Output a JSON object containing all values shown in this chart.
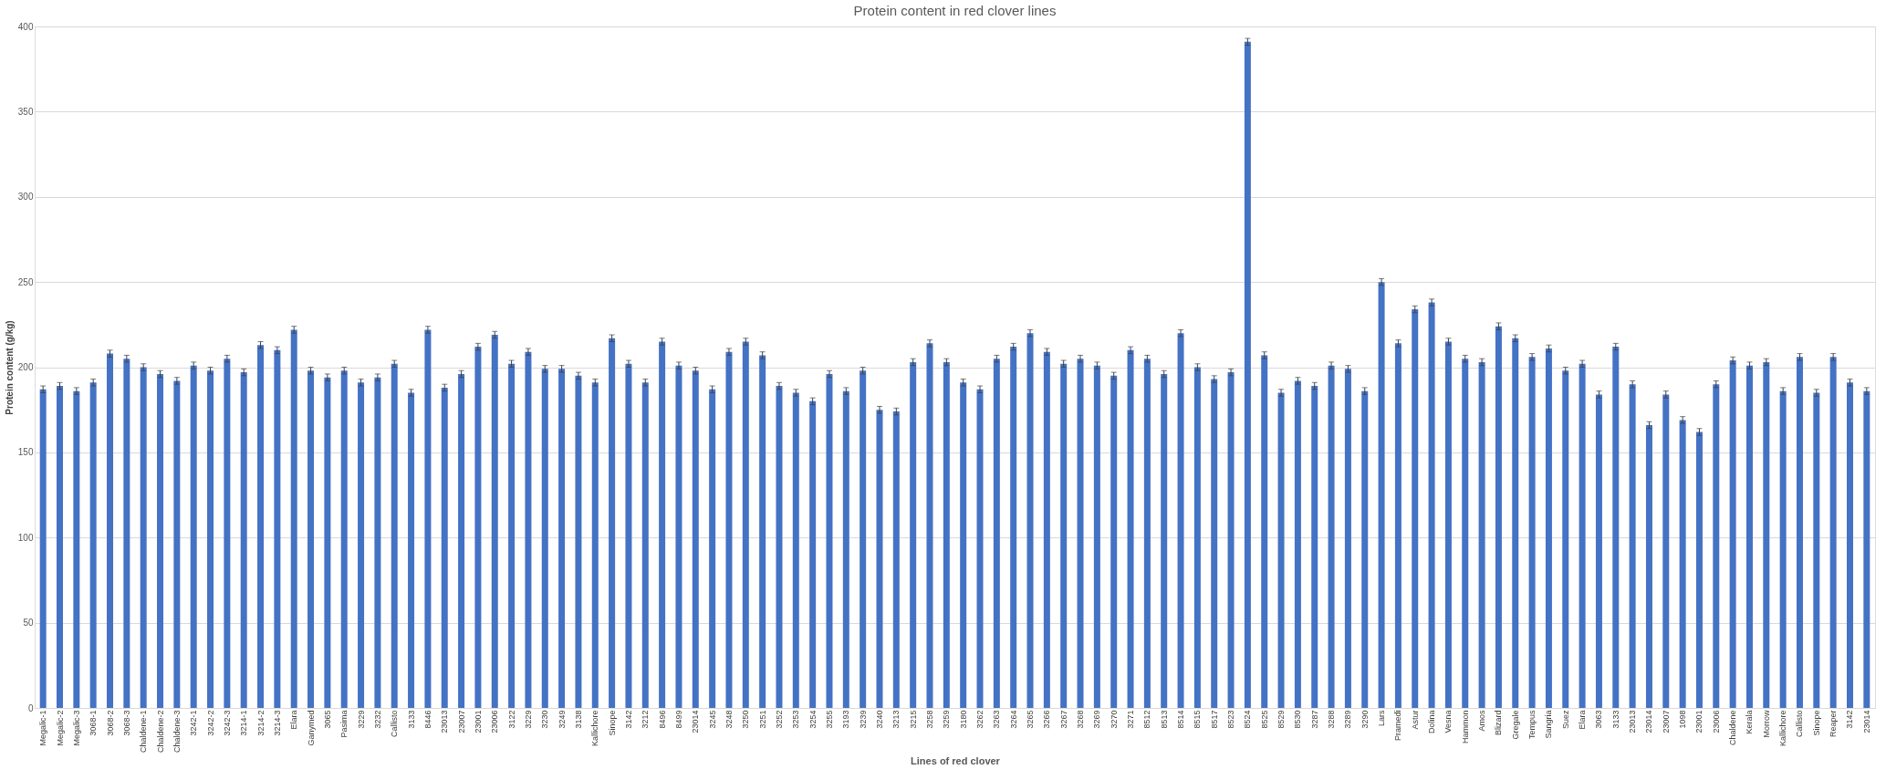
{
  "chart_data": {
    "type": "bar",
    "title": "Protein content in red clover lines",
    "xlabel": "Lines of red clover",
    "ylabel": "Protein content (g/kg)",
    "categories": [
      "Megalic-1",
      "Megalic-2",
      "Megalic-3",
      "3068-1",
      "3068-2",
      "3068-3",
      "Chaldene-1",
      "Chaldene-2",
      "Chaldene-3",
      "3242-1",
      "3242-2",
      "3242-3",
      "3214-1",
      "3214-2",
      "3214-3",
      "Elara",
      "Ganymed",
      "3065",
      "Pasima",
      "3229",
      "3232",
      "Callisto",
      "3133",
      "8446",
      "23013",
      "23007",
      "23001",
      "23006",
      "3122",
      "3229",
      "3230",
      "3249",
      "3138",
      "Kallichore",
      "Sinope",
      "3142",
      "3212",
      "8496",
      "8499",
      "23014",
      "3245",
      "3248",
      "3250",
      "3251",
      "3252",
      "3253",
      "3254",
      "3255",
      "3193",
      "3239",
      "3240",
      "3213",
      "3215",
      "3258",
      "3259",
      "3180",
      "3262",
      "3263",
      "3264",
      "3265",
      "3266",
      "3267",
      "3268",
      "3269",
      "3270",
      "3271",
      "8512",
      "8513",
      "8514",
      "8515",
      "8517",
      "8523",
      "8524",
      "8525",
      "8529",
      "8530",
      "3287",
      "3288",
      "3289",
      "3290",
      "Lars",
      "Pramedi",
      "Astur",
      "Dolina",
      "Vesna",
      "Hammon",
      "Amos",
      "Blizard",
      "Gregale",
      "Tempus",
      "Sangria",
      "Suez",
      "Elara",
      "3063",
      "3133",
      "23013",
      "23014",
      "23007",
      "1098",
      "23001",
      "23006",
      "Chaldene",
      "Kerala",
      "Morrow",
      "Kallichore",
      "Callisto",
      "Sinope",
      "Reaper",
      "3142",
      "23014"
    ],
    "series": [
      {
        "color": "#4472c4",
        "values": [
          187,
          189,
          186,
          191,
          208,
          205,
          200,
          196,
          192,
          201,
          198,
          205,
          197,
          213,
          210,
          222,
          198,
          194,
          198,
          191,
          194,
          202,
          185,
          222,
          188,
          196,
          212,
          219,
          202,
          209,
          199,
          199,
          195,
          191,
          217,
          202,
          191,
          215,
          201,
          198,
          187,
          209,
          215,
          207,
          189,
          185,
          180,
          196,
          186,
          198,
          175,
          174,
          203,
          214,
          203,
          191,
          187,
          205,
          212,
          220,
          209,
          202,
          205,
          201,
          195,
          210,
          205,
          196,
          220,
          200,
          193,
          197,
          391,
          207,
          185,
          192,
          189,
          201,
          199,
          186,
          250,
          214,
          234,
          238,
          215,
          205,
          203,
          224,
          217,
          206,
          211,
          198,
          202,
          184,
          212,
          190,
          166,
          184,
          169,
          162,
          190,
          204,
          201,
          203,
          186,
          206,
          185,
          206,
          191,
          186
        ],
        "errors": [
          2,
          2,
          2,
          2,
          2,
          2,
          2,
          2,
          2,
          2,
          2,
          2,
          2,
          2,
          2,
          2,
          2,
          2,
          2,
          2,
          2,
          2,
          2,
          2,
          2,
          2,
          2,
          2,
          2,
          2,
          2,
          2,
          2,
          2,
          2,
          2,
          2,
          2,
          2,
          2,
          2,
          2,
          2,
          2,
          2,
          2,
          2,
          2,
          2,
          2,
          2,
          2,
          2,
          2,
          2,
          2,
          2,
          2,
          2,
          2,
          2,
          2,
          2,
          2,
          2,
          2,
          2,
          2,
          2,
          2,
          2,
          2,
          2,
          2,
          2,
          2,
          2,
          2,
          2,
          2,
          2,
          2,
          2,
          2,
          2,
          2,
          2,
          2,
          2,
          2,
          2,
          2,
          2,
          2,
          2,
          2,
          2,
          2,
          2,
          2,
          2,
          2,
          2,
          2,
          2,
          2,
          2,
          2,
          2,
          2
        ]
      }
    ],
    "ylim": [
      0,
      400
    ],
    "yticks": [
      0,
      50,
      100,
      150,
      200,
      250,
      300,
      350,
      400
    ],
    "grid": "y"
  }
}
